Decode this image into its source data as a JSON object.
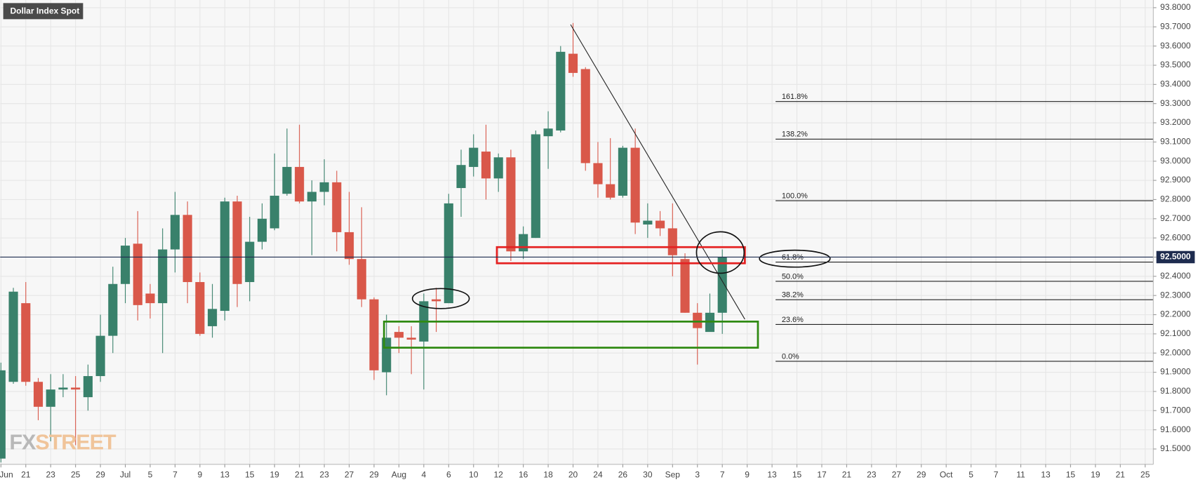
{
  "chart_data": {
    "type": "candlestick",
    "title": "Dollar Index Spot",
    "categories": [
      "Jun",
      null,
      "21",
      null,
      "23",
      null,
      "25",
      null,
      "29",
      null,
      "Jul",
      null,
      "5",
      null,
      "7",
      null,
      "9",
      null,
      "13",
      null,
      "15",
      null,
      "19",
      null,
      "21",
      null,
      "23",
      null,
      "27",
      null,
      "29",
      null,
      "Aug",
      null,
      "4",
      null,
      "6",
      null,
      "10",
      null,
      "12",
      null,
      "16",
      null,
      "18",
      null,
      "20",
      null,
      "24",
      null,
      "26",
      null,
      "30",
      null,
      "Sep",
      null,
      "3",
      null,
      "7",
      null,
      "9",
      null,
      "13",
      null,
      "15",
      null,
      "17",
      null,
      "21",
      null,
      "23",
      null,
      "27",
      null,
      "29",
      null,
      "Oct",
      null,
      "5",
      null,
      "7",
      null,
      "11",
      null,
      "13",
      null,
      "15",
      null,
      "19",
      null,
      "21",
      null,
      "25"
    ],
    "open": [
      91.45,
      91.85,
      92.26,
      91.85,
      91.72,
      91.81,
      91.82,
      91.77,
      91.88,
      92.09,
      92.36,
      92.57,
      92.31,
      92.26,
      92.54,
      92.72,
      92.37,
      92.14,
      92.22,
      92.79,
      92.37,
      92.58,
      92.65,
      92.83,
      92.97,
      92.79,
      92.84,
      92.89,
      92.63,
      92.49,
      92.28,
      91.9,
      92.11,
      92.08,
      92.06,
      92.28,
      92.26,
      92.86,
      92.97,
      93.05,
      92.91,
      93.02,
      92.53,
      92.6,
      93.13,
      93.16,
      93.56,
      93.48,
      92.99,
      92.88,
      92.82,
      93.07,
      92.67,
      92.69,
      92.65,
      92.49,
      92.21,
      92.11,
      92.21,
      null,
      null,
      null,
      null,
      null,
      null,
      null,
      null,
      null,
      null,
      null,
      null,
      null,
      null,
      null,
      null,
      null,
      null,
      null,
      null,
      null,
      null,
      null,
      null,
      null,
      null,
      null,
      null,
      null,
      null,
      null,
      null,
      null,
      null
    ],
    "high": [
      91.95,
      92.34,
      92.37,
      91.87,
      91.89,
      91.89,
      91.88,
      91.94,
      92.2,
      92.45,
      92.6,
      92.74,
      92.36,
      92.65,
      92.84,
      92.79,
      92.42,
      92.36,
      92.81,
      92.82,
      92.71,
      92.78,
      93.04,
      93.17,
      93.19,
      92.9,
      93.01,
      92.95,
      92.84,
      92.76,
      92.29,
      92.2,
      92.14,
      92.14,
      92.31,
      92.34,
      92.83,
      93.06,
      93.14,
      93.19,
      93.04,
      93.06,
      92.66,
      93.16,
      93.26,
      93.6,
      93.72,
      93.49,
      93.1,
      93.12,
      93.08,
      93.17,
      92.78,
      92.74,
      92.78,
      92.52,
      92.26,
      92.31,
      92.54,
      null,
      null,
      null,
      null,
      null,
      null,
      null,
      null,
      null,
      null,
      null,
      null,
      null,
      null,
      null,
      null,
      null,
      null,
      null,
      null,
      null,
      null,
      null,
      null,
      null,
      null,
      null,
      null,
      null,
      null,
      null,
      null,
      null,
      null
    ],
    "low": [
      91.43,
      91.84,
      91.83,
      91.65,
      91.54,
      91.77,
      91.52,
      91.7,
      91.85,
      92.0,
      92.26,
      92.17,
      92.18,
      92.0,
      92.42,
      92.26,
      92.09,
      92.08,
      92.17,
      92.24,
      92.27,
      92.54,
      92.64,
      92.82,
      92.78,
      92.51,
      92.77,
      92.53,
      92.46,
      92.24,
      91.86,
      91.78,
      92.0,
      91.89,
      91.81,
      92.11,
      92.26,
      92.71,
      92.92,
      92.8,
      92.84,
      92.48,
      92.49,
      92.6,
      92.96,
      93.15,
      93.44,
      92.95,
      92.81,
      92.8,
      92.81,
      92.62,
      92.6,
      92.61,
      92.4,
      92.21,
      91.94,
      92.12,
      92.1,
      null,
      null,
      null,
      null,
      null,
      null,
      null,
      null,
      null,
      null,
      null,
      null,
      null,
      null,
      null,
      null,
      null,
      null,
      null,
      null,
      null,
      null,
      null,
      null,
      null,
      null,
      null,
      null,
      null,
      null,
      null,
      null,
      null,
      null
    ],
    "close": [
      91.91,
      92.32,
      91.85,
      91.72,
      91.81,
      91.82,
      91.81,
      91.88,
      92.09,
      92.36,
      92.56,
      92.25,
      92.26,
      92.54,
      92.72,
      92.37,
      92.1,
      92.23,
      92.79,
      92.36,
      92.58,
      92.7,
      92.82,
      92.97,
      92.79,
      92.84,
      92.89,
      92.63,
      92.49,
      92.28,
      91.91,
      92.08,
      92.08,
      92.07,
      92.27,
      92.27,
      92.78,
      92.98,
      93.07,
      92.91,
      93.02,
      92.53,
      92.62,
      93.14,
      93.17,
      93.57,
      93.46,
      92.99,
      92.88,
      92.81,
      93.07,
      92.68,
      92.69,
      92.65,
      92.51,
      92.21,
      92.13,
      92.21,
      92.5,
      null,
      null,
      null,
      null,
      null,
      null,
      null,
      null,
      null,
      null,
      null,
      null,
      null,
      null,
      null,
      null,
      null,
      null,
      null,
      null,
      null,
      null,
      null,
      null,
      null,
      null,
      null,
      null,
      null,
      null,
      null,
      null,
      null,
      null
    ],
    "up_color": "#39816b",
    "down_color": "#d9584a",
    "ylim": [
      91.42,
      93.84
    ],
    "yticks": [
      {
        "value": 91.5,
        "label": "91.5000"
      },
      {
        "value": 91.6,
        "label": "91.6000"
      },
      {
        "value": 91.7,
        "label": "91.7000"
      },
      {
        "value": 91.8,
        "label": "91.8000"
      },
      {
        "value": 91.9,
        "label": "91.9000"
      },
      {
        "value": 92.0,
        "label": "92.0000"
      },
      {
        "value": 92.1,
        "label": "92.1000"
      },
      {
        "value": 92.2,
        "label": "92.2000"
      },
      {
        "value": 92.3,
        "label": "92.3000"
      },
      {
        "value": 92.4,
        "label": "92.4000"
      },
      {
        "value": 92.5,
        "label": "92.5000"
      },
      {
        "value": 92.6,
        "label": "92.6000"
      },
      {
        "value": 92.7,
        "label": "92.7000"
      },
      {
        "value": 92.8,
        "label": "92.8000"
      },
      {
        "value": 92.9,
        "label": "92.9000"
      },
      {
        "value": 93.0,
        "label": "93.0000"
      },
      {
        "value": 93.1,
        "label": "93.1000"
      },
      {
        "value": 93.2,
        "label": "93.2000"
      },
      {
        "value": 93.3,
        "label": "93.3000"
      },
      {
        "value": 93.4,
        "label": "93.4000"
      },
      {
        "value": 93.5,
        "label": "93.5000"
      },
      {
        "value": 93.6,
        "label": "93.6000"
      },
      {
        "value": 93.7,
        "label": "93.7000"
      },
      {
        "value": 93.8,
        "label": "93.8000"
      }
    ],
    "grid": true,
    "last_price": {
      "value": 92.5,
      "label": "92.5000"
    },
    "fib_levels": [
      {
        "label": "161.8%",
        "value": 93.311
      },
      {
        "label": "138.2%",
        "value": 93.115
      },
      {
        "label": "100.0%",
        "value": 92.794
      },
      {
        "label": "61.8%",
        "value": 92.474
      },
      {
        "label": "50.0%",
        "value": 92.374
      },
      {
        "label": "38.2%",
        "value": 92.278
      },
      {
        "label": "23.6%",
        "value": 92.149
      },
      {
        "label": "0.0%",
        "value": 91.957
      }
    ],
    "watermark": [
      "FX",
      "STREET"
    ]
  }
}
